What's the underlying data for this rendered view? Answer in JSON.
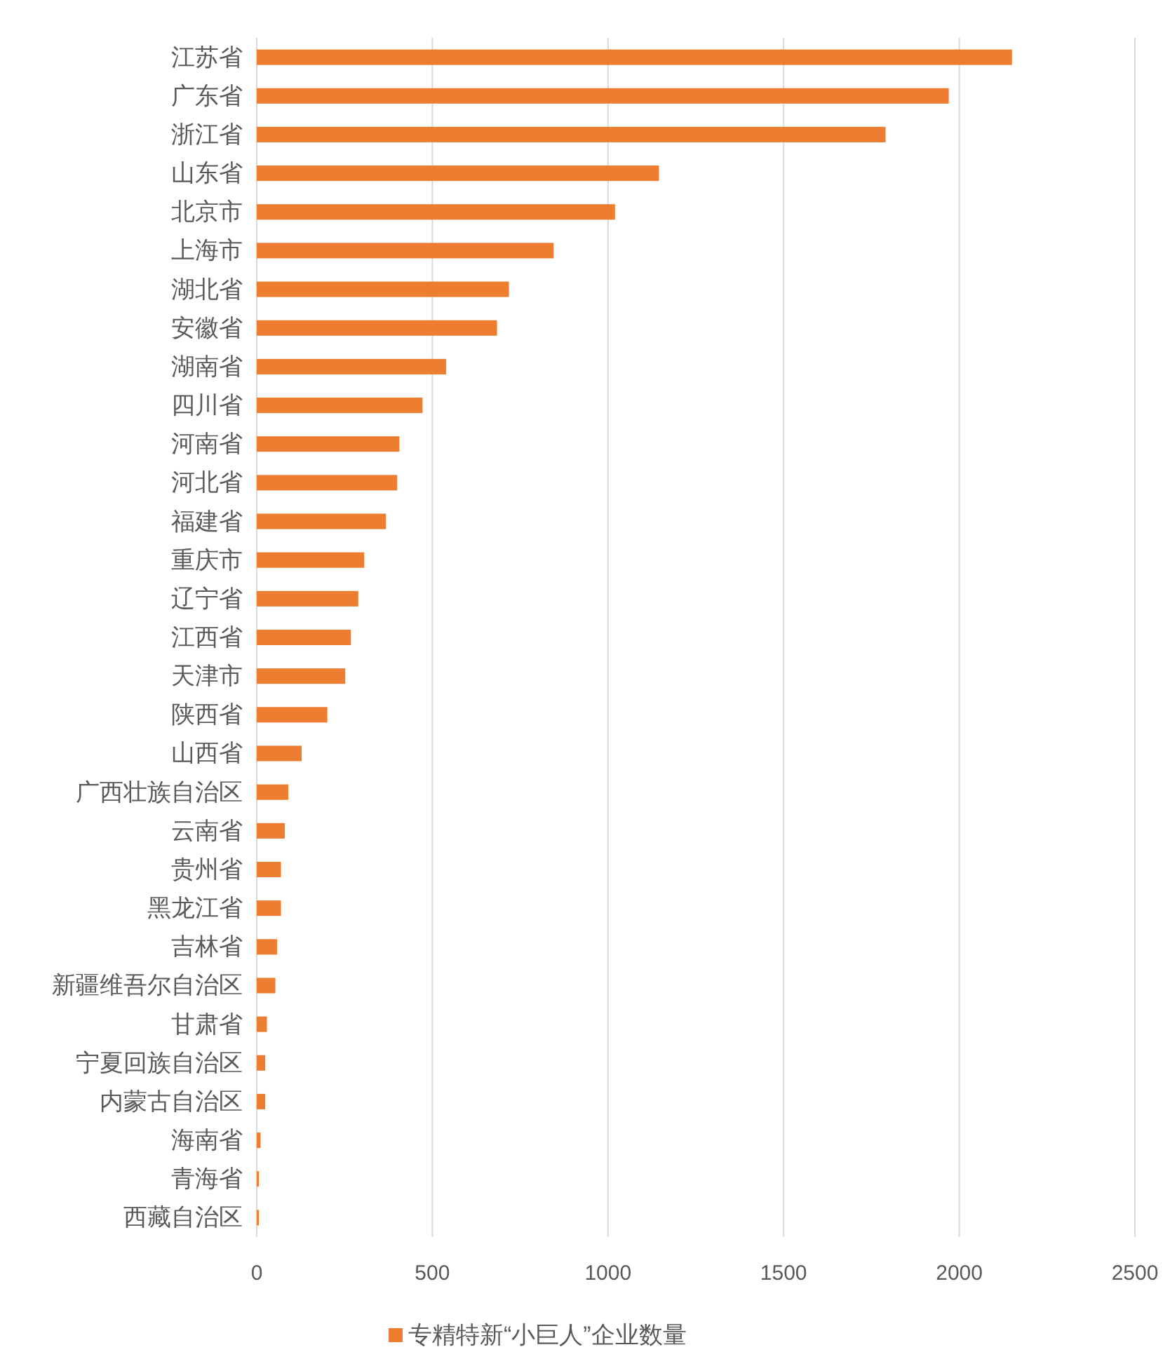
{
  "chart_data": {
    "type": "bar",
    "orientation": "horizontal",
    "categories": [
      "江苏省",
      "广东省",
      "浙江省",
      "山东省",
      "北京市",
      "上海市",
      "湖北省",
      "安徽省",
      "湖南省",
      "四川省",
      "河南省",
      "河北省",
      "福建省",
      "重庆市",
      "辽宁省",
      "江西省",
      "天津市",
      "陕西省",
      "山西省",
      "广西壮族自治区",
      "云南省",
      "贵州省",
      "黑龙江省",
      "吉林省",
      "新疆维吾尔自治区",
      "甘肃省",
      "宁夏回族自治区",
      "内蒙古自治区",
      "海南省",
      "青海省",
      "西藏自治区"
    ],
    "series": [
      {
        "name": "专精特新“小巨人”企业数量",
        "color": "#ed7d31",
        "values": [
          2150,
          1970,
          1790,
          1145,
          1020,
          845,
          718,
          684,
          539,
          472,
          406,
          400,
          368,
          306,
          289,
          268,
          252,
          201,
          128,
          90,
          80,
          69,
          69,
          58,
          53,
          29,
          24,
          24,
          11,
          6,
          6
        ]
      }
    ],
    "xlim": [
      0,
      2500
    ],
    "xticks": [
      0,
      500,
      1000,
      1500,
      2000,
      2500
    ],
    "grid": "x",
    "legend": "bottom"
  }
}
